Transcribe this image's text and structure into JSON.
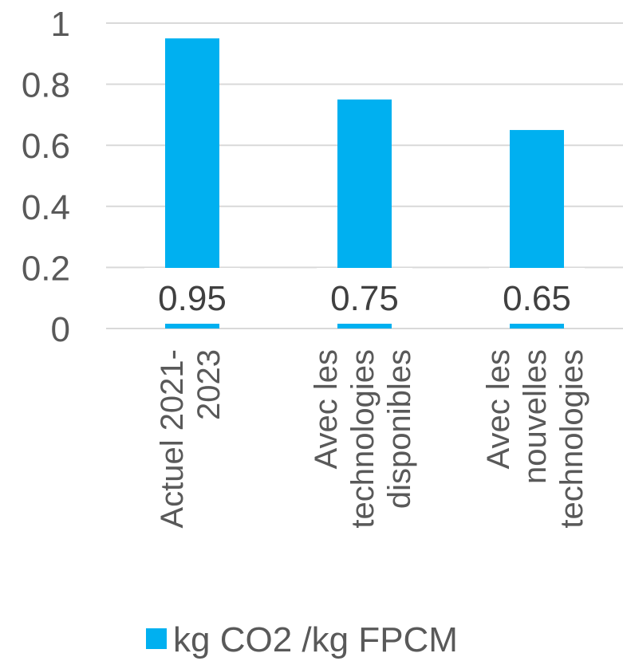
{
  "chart_data": {
    "type": "bar",
    "categories": [
      [
        "Actuel 2021-",
        "2023"
      ],
      [
        "Avec les",
        "technologies",
        "disponibles"
      ],
      [
        "Avec les",
        "nouvelles",
        "technologies"
      ]
    ],
    "series": [
      {
        "name": "kg CO2 /kg FPCM",
        "values": [
          0.95,
          0.75,
          0.65
        ],
        "color": "#00B0F0"
      }
    ],
    "data_labels": [
      "0.95",
      "0.75",
      "0.65"
    ],
    "yticks": [
      "0",
      "0.2",
      "0.4",
      "0.6",
      "0.8",
      "1"
    ],
    "ylim": [
      0,
      1
    ],
    "grid": true,
    "legend_position": "bottom",
    "label_background": "#ffffff"
  }
}
